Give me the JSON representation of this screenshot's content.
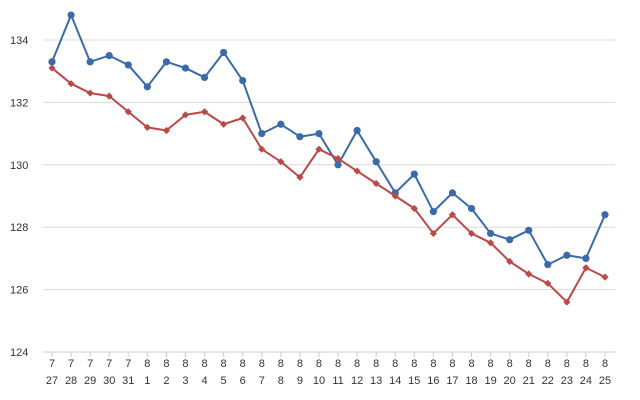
{
  "chart_data": {
    "type": "line",
    "title": "",
    "xlabel": "",
    "ylabel": "",
    "ylim": [
      124,
      134
    ],
    "yticks": [
      "124",
      "126",
      "128",
      "130",
      "132",
      "134"
    ],
    "grid": true,
    "legend": "none",
    "categories": [
      {
        "month": "7",
        "day": "27"
      },
      {
        "month": "7",
        "day": "28"
      },
      {
        "month": "7",
        "day": "29"
      },
      {
        "month": "7",
        "day": "30"
      },
      {
        "month": "7",
        "day": "31"
      },
      {
        "month": "8",
        "day": "1"
      },
      {
        "month": "8",
        "day": "2"
      },
      {
        "month": "8",
        "day": "3"
      },
      {
        "month": "8",
        "day": "4"
      },
      {
        "month": "8",
        "day": "5"
      },
      {
        "month": "8",
        "day": "6"
      },
      {
        "month": "8",
        "day": "7"
      },
      {
        "month": "8",
        "day": "8"
      },
      {
        "month": "8",
        "day": "9"
      },
      {
        "month": "8",
        "day": "10"
      },
      {
        "month": "8",
        "day": "11"
      },
      {
        "month": "8",
        "day": "12"
      },
      {
        "month": "8",
        "day": "13"
      },
      {
        "month": "8",
        "day": "14"
      },
      {
        "month": "8",
        "day": "15"
      },
      {
        "month": "8",
        "day": "16"
      },
      {
        "month": "8",
        "day": "17"
      },
      {
        "month": "8",
        "day": "18"
      },
      {
        "month": "8",
        "day": "19"
      },
      {
        "month": "8",
        "day": "20"
      },
      {
        "month": "8",
        "day": "21"
      },
      {
        "month": "8",
        "day": "22"
      },
      {
        "month": "8",
        "day": "23"
      },
      {
        "month": "8",
        "day": "24"
      },
      {
        "month": "8",
        "day": "25"
      }
    ],
    "series": [
      {
        "color": "#3b6aa8",
        "marker": "circle",
        "values": [
          133.3,
          134.8,
          133.3,
          133.5,
          133.2,
          132.5,
          133.3,
          133.1,
          132.8,
          133.6,
          132.7,
          131.0,
          131.3,
          130.9,
          131.0,
          130.0,
          131.1,
          130.1,
          129.1,
          129.7,
          128.5,
          129.1,
          128.6,
          127.8,
          127.6,
          127.9,
          126.8,
          127.1,
          127.0,
          128.4
        ]
      },
      {
        "color": "#b94a48",
        "marker": "diamond",
        "values": [
          133.1,
          132.6,
          132.3,
          132.2,
          131.7,
          131.2,
          131.1,
          131.6,
          131.7,
          131.3,
          131.5,
          130.5,
          130.1,
          129.6,
          130.5,
          130.2,
          129.8,
          129.4,
          129.0,
          128.6,
          127.8,
          128.4,
          127.8,
          127.5,
          126.9,
          126.5,
          126.2,
          125.6,
          126.7,
          126.4
        ]
      }
    ]
  }
}
